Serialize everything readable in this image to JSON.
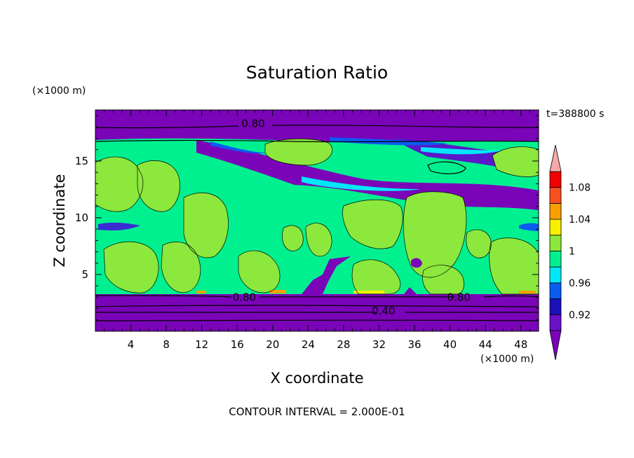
{
  "chart_data": {
    "type": "heatmap",
    "title": "Saturation Ratio",
    "xlabel": "X coordinate",
    "ylabel": "Z coordinate",
    "x_unit": "(×1000 m)",
    "y_unit": "(×1000 m)",
    "time_label": "t=388800 s",
    "footer": "CONTOUR INTERVAL = 2.000E-01",
    "xlim": [
      0,
      50
    ],
    "ylim": [
      0,
      19.5
    ],
    "x_ticks": [
      4,
      8,
      12,
      16,
      20,
      24,
      28,
      32,
      36,
      40,
      44,
      48
    ],
    "y_ticks": [
      5,
      10,
      15
    ],
    "colorbar": {
      "levels": [
        0.9,
        0.92,
        0.94,
        0.96,
        0.98,
        1.0,
        1.02,
        1.04,
        1.06,
        1.08,
        1.1
      ],
      "labels": [
        "0.92",
        "0.96",
        "1",
        "1.04",
        "1.08"
      ],
      "label_levels": [
        0.92,
        0.96,
        1.0,
        1.04,
        1.08
      ],
      "below_color": "#7a04b8",
      "above_color": "#f4a8a8",
      "colors": [
        "#6a10c8",
        "#1a10b8",
        "#0a5cf0",
        "#00e8f8",
        "#00f090",
        "#8ce83c",
        "#f8f000",
        "#f8a000",
        "#f85020",
        "#f00000"
      ]
    },
    "contour_labels": [
      {
        "text": "0.80",
        "x": 17.8,
        "z": 18.3
      },
      {
        "text": "0.80",
        "x": 16.8,
        "z": 3.0
      },
      {
        "text": "0.80",
        "x": 41.0,
        "z": 3.0
      },
      {
        "text": "0.40",
        "x": 32.5,
        "z": 1.8
      }
    ],
    "palette": {
      "dry": "#7a04b8",
      "blue": "#0a5cf0",
      "cyan": "#00e8f8",
      "green": "#00f090",
      "yellowgreen": "#8ce83c"
    }
  }
}
